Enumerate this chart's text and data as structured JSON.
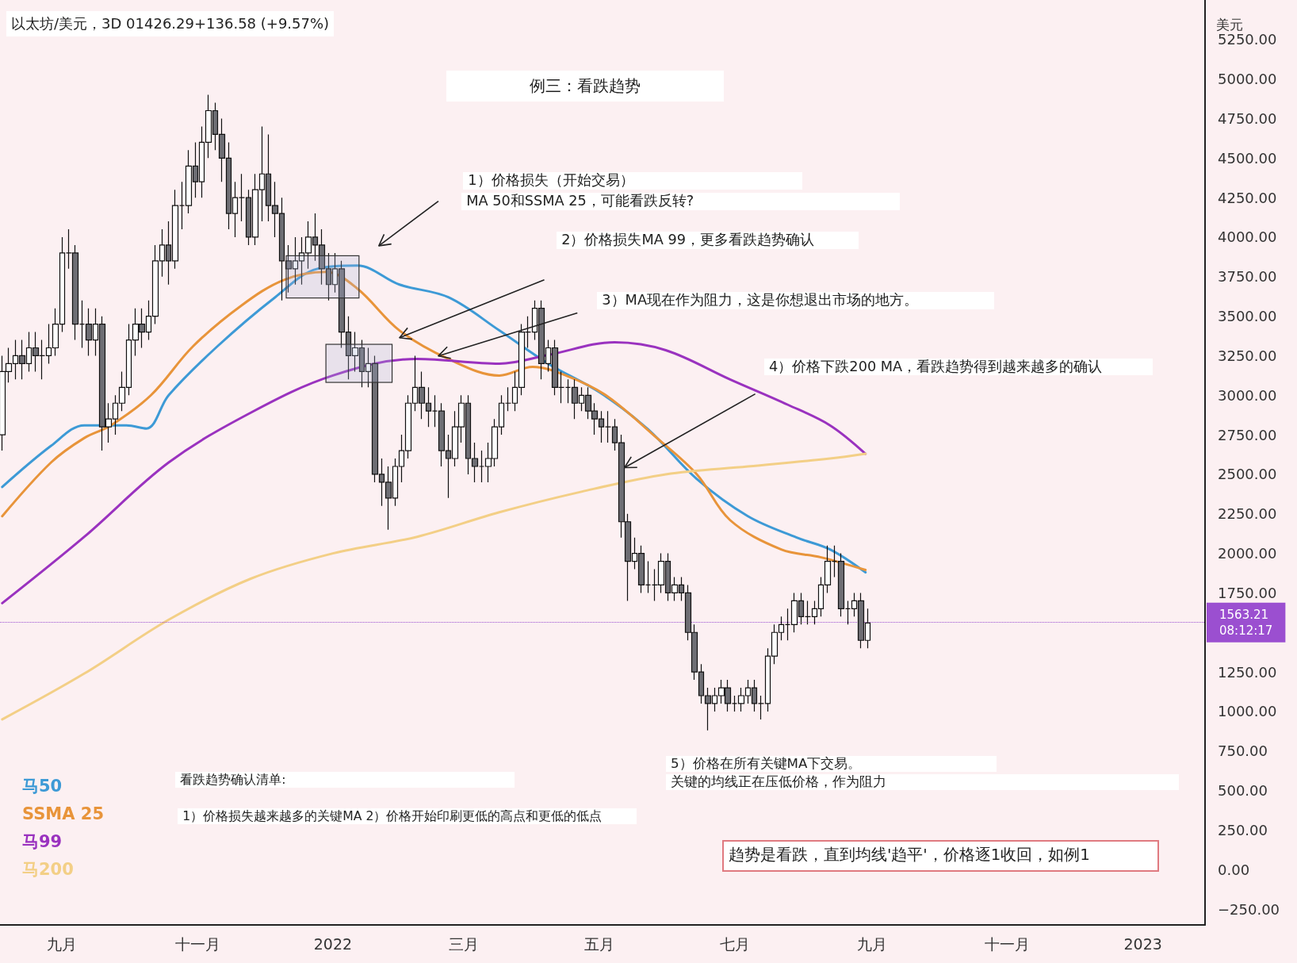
{
  "chart_data": {
    "type": "candlestick",
    "title": "以太坊/美元，3D 01426.29+136.58 (+9.57%)",
    "subtitle": "例三：看跌趋势",
    "ylabel": "美元",
    "colors": [
      "#ffffff",
      "#ffffff",
      "#ffffff",
      "#6e6e74",
      "#ffffff",
      "#6e6e74",
      "#111111",
      "#ffffff",
      "#ffffff",
      "#ffffff",
      "#111111",
      "#6e6e74",
      "#111111",
      "#6e6e74",
      "#ffffff",
      "#6e6e74",
      "#ffffff",
      "#ffffff",
      "#ffffff",
      "#ffffff",
      "#ffffff",
      "#6e6e74",
      "#ffffff",
      "#ffffff",
      "#ffffff",
      "#6e6e74",
      "#ffffff",
      "#111111",
      "#ffffff",
      "#6e6e74",
      "#ffffff",
      "#ffffff",
      "#6e6e74",
      "#6e6e74",
      "#6e6e74",
      "#ffffff",
      "#111111",
      "#6e6e74",
      "#ffffff",
      "#ffffff",
      "#6e6e74",
      "#6e6e74",
      "#6e6e74",
      "#6e6e74",
      "#ffffff",
      "#ffffff",
      "#ffffff",
      "#6e6e74",
      "#6e6e74",
      "#6e6e74",
      "#ffffff",
      "#6e6e74",
      "#6e6e74",
      "#ffffff",
      "#6e6e74",
      "#ffffff",
      "#6e6e74",
      "#6e6e74",
      "#6e6e74",
      "#ffffff",
      "#ffffff",
      "#ffffff",
      "#ffffff",
      "#6e6e74",
      "#6e6e74",
      "#111111",
      "#6e6e74",
      "#6e6e74",
      "#ffffff",
      "#ffffff",
      "#6e6e74",
      "#6e6e74",
      "#111111",
      "#ffffff",
      "#ffffff",
      "#ffffff",
      "#111111",
      "#ffffff",
      "#ffffff",
      "#111111",
      "#ffffff",
      "#6e6e74",
      "#ffffff",
      "#6e6e74",
      "#111111",
      "#111111",
      "#6e6e74",
      "#ffffff",
      "#6e6e74",
      "#6e6e74",
      "#6e6e74",
      "#111111",
      "#6e6e74",
      "#6e6e74",
      "#6e6e74",
      "#ffffff",
      "#6e6e74",
      "#111111",
      "#111111",
      "#ffffff",
      "#6e6e74",
      "#ffffff",
      "#6e6e74",
      "#6e6e74",
      "#6e6e74",
      "#6e6e74",
      "#6e6e74",
      "#ffffff",
      "#ffffff",
      "#6e6e74",
      "#111111",
      "#ffffff",
      "#ffffff",
      "#6e6e74",
      "#111111",
      "#ffffff",
      "#ffffff",
      "#ffffff",
      "#111111",
      "#ffffff",
      "#6e6e74",
      "#111111",
      "#ffffff",
      "#ffffff",
      "#ffffff",
      "#111111",
      "#6e6e74",
      "#111111",
      "#ffffff",
      "#6e6e74",
      "#ffffff"
    ],
    "x": [
      "2021-08-05",
      "2021-08-08",
      "2021-08-11",
      "2021-08-14",
      "2021-08-17",
      "2021-08-20",
      "2021-08-23",
      "2021-08-26",
      "2021-08-29",
      "2021-09-01",
      "2021-09-04",
      "2021-09-07",
      "2021-09-10",
      "2021-09-13",
      "2021-09-16",
      "2021-09-19",
      "2021-09-22",
      "2021-09-25",
      "2021-09-28",
      "2021-10-01",
      "2021-10-04",
      "2021-10-07",
      "2021-10-10",
      "2021-10-13",
      "2021-10-16",
      "2021-10-19",
      "2021-10-22",
      "2021-10-25",
      "2021-10-28",
      "2021-10-31",
      "2021-11-03",
      "2021-11-06",
      "2021-11-09",
      "2021-11-12",
      "2021-11-15",
      "2021-11-18",
      "2021-11-21",
      "2021-11-24",
      "2021-11-27",
      "2021-11-30",
      "2021-12-03",
      "2021-12-06",
      "2021-12-09",
      "2021-12-12",
      "2021-12-15",
      "2021-12-18",
      "2021-12-21",
      "2021-12-24",
      "2021-12-27",
      "2021-12-30",
      "2022-01-02",
      "2022-01-05",
      "2022-01-08",
      "2022-01-11",
      "2022-01-14",
      "2022-01-17",
      "2022-01-20",
      "2022-01-23",
      "2022-01-26",
      "2022-01-29",
      "2022-02-01",
      "2022-02-04",
      "2022-02-07",
      "2022-02-10",
      "2022-02-13",
      "2022-02-16",
      "2022-02-19",
      "2022-02-22",
      "2022-02-25",
      "2022-02-28",
      "2022-03-03",
      "2022-03-06",
      "2022-03-09",
      "2022-03-12",
      "2022-03-15",
      "2022-03-18",
      "2022-03-21",
      "2022-03-24",
      "2022-03-27",
      "2022-03-30",
      "2022-04-02",
      "2022-04-05",
      "2022-04-08",
      "2022-04-11",
      "2022-04-14",
      "2022-04-17",
      "2022-04-20",
      "2022-04-23",
      "2022-04-26",
      "2022-04-29",
      "2022-05-02",
      "2022-05-05",
      "2022-05-08",
      "2022-05-11",
      "2022-05-14",
      "2022-05-17",
      "2022-05-20",
      "2022-05-23",
      "2022-05-26",
      "2022-05-29",
      "2022-06-01",
      "2022-06-04",
      "2022-06-07",
      "2022-06-10",
      "2022-06-13",
      "2022-06-16",
      "2022-06-19",
      "2022-06-22",
      "2022-06-25",
      "2022-06-28",
      "2022-07-01",
      "2022-07-04",
      "2022-07-07",
      "2022-07-10",
      "2022-07-13",
      "2022-07-16",
      "2022-07-19",
      "2022-07-22",
      "2022-07-25",
      "2022-07-28",
      "2022-07-31",
      "2022-08-03",
      "2022-08-06",
      "2022-08-09",
      "2022-08-12",
      "2022-08-15",
      "2022-08-18",
      "2022-08-21",
      "2022-08-24",
      "2022-08-27",
      "2022-08-30"
    ],
    "ohlc": [
      [
        2750,
        3250,
        2650,
        3150
      ],
      [
        3150,
        3300,
        3080,
        3200
      ],
      [
        3200,
        3350,
        3100,
        3250
      ],
      [
        3250,
        3350,
        3100,
        3200
      ],
      [
        3200,
        3400,
        3150,
        3300
      ],
      [
        3300,
        3400,
        3150,
        3250
      ],
      [
        3250,
        3350,
        3100,
        3250
      ],
      [
        3250,
        3450,
        3200,
        3300
      ],
      [
        3300,
        3550,
        3250,
        3450
      ],
      [
        3450,
        4000,
        3400,
        3900
      ],
      [
        3900,
        4050,
        3800,
        3900
      ],
      [
        3900,
        3950,
        3350,
        3450
      ],
      [
        3450,
        3600,
        3300,
        3450
      ],
      [
        3450,
        3550,
        3250,
        3350
      ],
      [
        3350,
        3550,
        3250,
        3450
      ],
      [
        3450,
        3500,
        2650,
        2800
      ],
      [
        2800,
        2950,
        2700,
        2850
      ],
      [
        2850,
        3000,
        2750,
        2950
      ],
      [
        2950,
        3150,
        2900,
        3050
      ],
      [
        3050,
        3450,
        3000,
        3350
      ],
      [
        3350,
        3550,
        3250,
        3450
      ],
      [
        3450,
        3550,
        3300,
        3400
      ],
      [
        3400,
        3600,
        3350,
        3500
      ],
      [
        3500,
        3950,
        3450,
        3850
      ],
      [
        3850,
        4050,
        3750,
        3950
      ],
      [
        3950,
        4100,
        3700,
        3850
      ],
      [
        3850,
        4300,
        3800,
        4200
      ],
      [
        4200,
        4350,
        4050,
        4200
      ],
      [
        4200,
        4550,
        4150,
        4450
      ],
      [
        4450,
        4600,
        4250,
        4350
      ],
      [
        4350,
        4700,
        4250,
        4600
      ],
      [
        4600,
        4900,
        4500,
        4800
      ],
      [
        4800,
        4850,
        4550,
        4650
      ],
      [
        4650,
        4750,
        4350,
        4500
      ],
      [
        4500,
        4600,
        4050,
        4150
      ],
      [
        4150,
        4350,
        4000,
        4250
      ],
      [
        4250,
        4400,
        4100,
        4250
      ],
      [
        4250,
        4300,
        3950,
        4000
      ],
      [
        4000,
        4400,
        3950,
        4300
      ],
      [
        4300,
        4700,
        4100,
        4400
      ],
      [
        4400,
        4650,
        4100,
        4200
      ],
      [
        4200,
        4350,
        4000,
        4150
      ],
      [
        4150,
        4250,
        3600,
        3850
      ],
      [
        3850,
        3950,
        3650,
        3800
      ],
      [
        3800,
        4000,
        3700,
        3850
      ],
      [
        3850,
        4000,
        3700,
        3900
      ],
      [
        3900,
        4100,
        3800,
        4000
      ],
      [
        4000,
        4150,
        3850,
        3950
      ],
      [
        3950,
        4050,
        3700,
        3800
      ],
      [
        3800,
        3900,
        3600,
        3700
      ],
      [
        3700,
        3900,
        3650,
        3800
      ],
      [
        3800,
        3850,
        3300,
        3400
      ],
      [
        3400,
        3500,
        3100,
        3250
      ],
      [
        3250,
        3400,
        3150,
        3300
      ],
      [
        3300,
        3350,
        3050,
        3150
      ],
      [
        3150,
        3300,
        3050,
        3200
      ],
      [
        3200,
        3250,
        2450,
        2500
      ],
      [
        2500,
        2600,
        2300,
        2450
      ],
      [
        2450,
        2550,
        2150,
        2350
      ],
      [
        2350,
        2600,
        2300,
        2550
      ],
      [
        2550,
        2750,
        2450,
        2650
      ],
      [
        2650,
        3000,
        2600,
        2950
      ],
      [
        2950,
        3250,
        2900,
        3050
      ],
      [
        3050,
        3150,
        2850,
        2950
      ],
      [
        2950,
        3050,
        2800,
        2900
      ],
      [
        2900,
        3000,
        2800,
        2900
      ],
      [
        2900,
        2950,
        2550,
        2650
      ],
      [
        2650,
        2750,
        2350,
        2600
      ],
      [
        2600,
        2900,
        2550,
        2800
      ],
      [
        2800,
        3000,
        2700,
        2950
      ],
      [
        2950,
        3000,
        2500,
        2600
      ],
      [
        2600,
        2700,
        2450,
        2550
      ],
      [
        2550,
        2650,
        2450,
        2550
      ],
      [
        2550,
        2700,
        2450,
        2600
      ],
      [
        2600,
        2850,
        2550,
        2800
      ],
      [
        2800,
        3000,
        2750,
        2950
      ],
      [
        2950,
        3050,
        2900,
        2950
      ],
      [
        2950,
        3150,
        2900,
        3050
      ],
      [
        3050,
        3450,
        3000,
        3400
      ],
      [
        3400,
        3500,
        3300,
        3400
      ],
      [
        3400,
        3600,
        3350,
        3550
      ],
      [
        3550,
        3600,
        3100,
        3200
      ],
      [
        3200,
        3350,
        3150,
        3300
      ],
      [
        3300,
        3350,
        3000,
        3050
      ],
      [
        3050,
        3150,
        2950,
        3050
      ],
      [
        3050,
        3100,
        2950,
        3050
      ],
      [
        3050,
        3100,
        2850,
        2950
      ],
      [
        2950,
        3050,
        2900,
        3000
      ],
      [
        3000,
        3050,
        2850,
        2900
      ],
      [
        2900,
        2950,
        2750,
        2850
      ],
      [
        2850,
        2900,
        2700,
        2800
      ],
      [
        2800,
        2900,
        2700,
        2800
      ],
      [
        2800,
        2850,
        2650,
        2700
      ],
      [
        2700,
        2750,
        2100,
        2200
      ],
      [
        2200,
        2250,
        1700,
        1950
      ],
      [
        1950,
        2100,
        1900,
        2000
      ],
      [
        2000,
        2050,
        1750,
        1800
      ],
      [
        1800,
        1950,
        1750,
        1800
      ],
      [
        1800,
        1900,
        1700,
        1800
      ],
      [
        1800,
        2000,
        1750,
        1950
      ],
      [
        1950,
        2000,
        1700,
        1750
      ],
      [
        1750,
        1850,
        1700,
        1800
      ],
      [
        1800,
        1850,
        1700,
        1750
      ],
      [
        1750,
        1800,
        1450,
        1500
      ],
      [
        1500,
        1550,
        1200,
        1250
      ],
      [
        1250,
        1300,
        1050,
        1100
      ],
      [
        1100,
        1150,
        880,
        1050
      ],
      [
        1050,
        1150,
        1000,
        1100
      ],
      [
        1100,
        1200,
        1050,
        1150
      ],
      [
        1150,
        1200,
        1000,
        1050
      ],
      [
        1050,
        1100,
        1000,
        1050
      ],
      [
        1050,
        1150,
        1000,
        1100
      ],
      [
        1100,
        1200,
        1050,
        1150
      ],
      [
        1150,
        1200,
        1000,
        1050
      ],
      [
        1050,
        1100,
        950,
        1050
      ],
      [
        1050,
        1400,
        1000,
        1350
      ],
      [
        1350,
        1550,
        1300,
        1500
      ],
      [
        1500,
        1600,
        1450,
        1550
      ],
      [
        1550,
        1650,
        1450,
        1550
      ],
      [
        1550,
        1750,
        1500,
        1700
      ],
      [
        1700,
        1750,
        1550,
        1600
      ],
      [
        1600,
        1700,
        1550,
        1600
      ],
      [
        1600,
        1700,
        1550,
        1650
      ],
      [
        1650,
        1850,
        1600,
        1800
      ],
      [
        1800,
        2050,
        1750,
        1950
      ],
      [
        1950,
        2050,
        1850,
        1950
      ],
      [
        1950,
        2000,
        1600,
        1650
      ],
      [
        1650,
        1700,
        1550,
        1650
      ],
      [
        1650,
        1750,
        1600,
        1700
      ],
      [
        1700,
        1750,
        1400,
        1450
      ],
      [
        1450,
        1650,
        1400,
        1560
      ]
    ],
    "series": [
      {
        "type": "line",
        "name": "马50",
        "color": "#3d9ad6",
        "x": [
          "2021-08-05",
          "2021-08-27",
          "2021-09-11",
          "2021-09-30",
          "2021-10-09",
          "2021-10-19",
          "2021-11-10",
          "2021-12-06",
          "2021-12-25",
          "2022-01-12",
          "2022-01-31",
          "2022-02-22",
          "2022-03-17",
          "2022-04-08",
          "2022-05-01",
          "2022-05-23",
          "2022-06-14",
          "2022-07-07",
          "2022-07-29",
          "2022-08-13",
          "2022-08-29"
        ],
        "values": [
          2420,
          2680,
          2810,
          2810,
          2790,
          3000,
          3310,
          3620,
          3800,
          3820,
          3700,
          3620,
          3410,
          3200,
          3020,
          2785,
          2470,
          2235,
          2100,
          2025,
          1880
        ]
      },
      {
        "type": "line",
        "name": "SSMA 25",
        "color": "#e8943a",
        "x": [
          "2021-08-05",
          "2021-08-27",
          "2021-09-11",
          "2021-09-23",
          "2021-10-11",
          "2021-10-30",
          "2021-11-21",
          "2021-12-10",
          "2021-12-29",
          "2022-01-12",
          "2022-01-31",
          "2022-02-22",
          "2022-03-17",
          "2022-04-01",
          "2022-04-16",
          "2022-05-04",
          "2022-05-27",
          "2022-06-14",
          "2022-06-29",
          "2022-07-22",
          "2022-08-09",
          "2022-08-29"
        ],
        "values": [
          2235,
          2575,
          2730,
          2810,
          3000,
          3310,
          3570,
          3730,
          3780,
          3675,
          3410,
          3230,
          3125,
          3180,
          3125,
          3000,
          2730,
          2500,
          2210,
          2025,
          1975,
          1895
        ]
      },
      {
        "type": "line",
        "name": "马99",
        "color": "#9a32bf",
        "x": [
          "2021-08-05",
          "2021-09-11",
          "2021-10-19",
          "2021-11-25",
          "2022-01-01",
          "2022-02-08",
          "2022-03-17",
          "2022-04-08",
          "2022-05-08",
          "2022-05-31",
          "2022-06-29",
          "2022-07-25",
          "2022-08-13",
          "2022-08-29"
        ],
        "values": [
          1685,
          2105,
          2575,
          2890,
          3125,
          3230,
          3200,
          3255,
          3335,
          3285,
          3100,
          2940,
          2810,
          2630
        ]
      },
      {
        "type": "line",
        "name": "马200",
        "color": "#f3cf86",
        "x": [
          "2021-08-05",
          "2021-09-11",
          "2021-10-19",
          "2021-11-25",
          "2022-01-01",
          "2022-02-08",
          "2022-03-17",
          "2022-04-23",
          "2022-05-31",
          "2022-07-07",
          "2022-08-13",
          "2022-08-29"
        ],
        "values": [
          950,
          1240,
          1580,
          1840,
          2000,
          2105,
          2260,
          2390,
          2500,
          2550,
          2600,
          2630
        ]
      }
    ],
    "xlim": [
      "2021-08-04",
      "2023-01-29"
    ],
    "xticks": [
      {
        "value": "2021-09-01",
        "label": "九月"
      },
      {
        "value": "2021-11-01",
        "label": "十一月"
      },
      {
        "value": "2022-01-01",
        "label": "2022"
      },
      {
        "value": "2022-03-01",
        "label": "三月"
      },
      {
        "value": "2022-05-01",
        "label": "五月"
      },
      {
        "value": "2022-07-01",
        "label": "七月"
      },
      {
        "value": "2022-09-01",
        "label": "九月"
      },
      {
        "value": "2022-11-01",
        "label": "十一月"
      },
      {
        "value": "2023-01-01",
        "label": "2023"
      }
    ],
    "ylim": [
      -350,
      5500
    ],
    "yticks": [
      {
        "value": -250,
        "label": "−250.00"
      },
      {
        "value": 0,
        "label": "0.00"
      },
      {
        "value": 250,
        "label": "250.00"
      },
      {
        "value": 500,
        "label": "500.00"
      },
      {
        "value": 750,
        "label": "750.00"
      },
      {
        "value": 1000,
        "label": "1000.00"
      },
      {
        "value": 1250,
        "label": "1250.00"
      },
      {
        "value": 1750,
        "label": "1750.00"
      },
      {
        "value": 2000,
        "label": "2000.00"
      },
      {
        "value": 2250,
        "label": "2250.00"
      },
      {
        "value": 2500,
        "label": "2500.00"
      },
      {
        "value": 2750,
        "label": "2750.00"
      },
      {
        "value": 3000,
        "label": "3000.00"
      },
      {
        "value": 3250,
        "label": "3250.00"
      },
      {
        "value": 3500,
        "label": "3500.00"
      },
      {
        "value": 3750,
        "label": "3750.00"
      },
      {
        "value": 4000,
        "label": "4000.00"
      },
      {
        "value": 4250,
        "label": "4250.00"
      },
      {
        "value": 4500,
        "label": "4500.00"
      },
      {
        "value": 4750,
        "label": "4750.00"
      },
      {
        "value": 5000,
        "label": "5000.00"
      },
      {
        "value": 5250,
        "label": "5250.00"
      }
    ],
    "ref_lines": [
      {
        "axis": "y",
        "value": 1563.21,
        "label": "1563.21\n08:12:17",
        "color": "#9b4fd0"
      }
    ],
    "legend": "bottom left",
    "grid": false,
    "annotations": [
      "1）价格损失（开始交易）",
      "MA 50和SSMA 25，可能看跌反转?",
      "2）价格损失MA 99，更多看跌趋势确认",
      "3）MA现在作为阻力，这是你想退出市场的地方。",
      "4）价格下跌200 MA，看跌趋势得到越来越多的确认",
      "5）价格在所有关键MA下交易。",
      "关键的均线正在压低价格，作为阻力",
      "看跌趋势确认清单:",
      "1）价格损失越来越多的关键MA 2）价格开始印刷更低的高点和更低的低点",
      "趋势是看跌，直到均线'趋平'，价格逐1收回，如例1"
    ]
  }
}
